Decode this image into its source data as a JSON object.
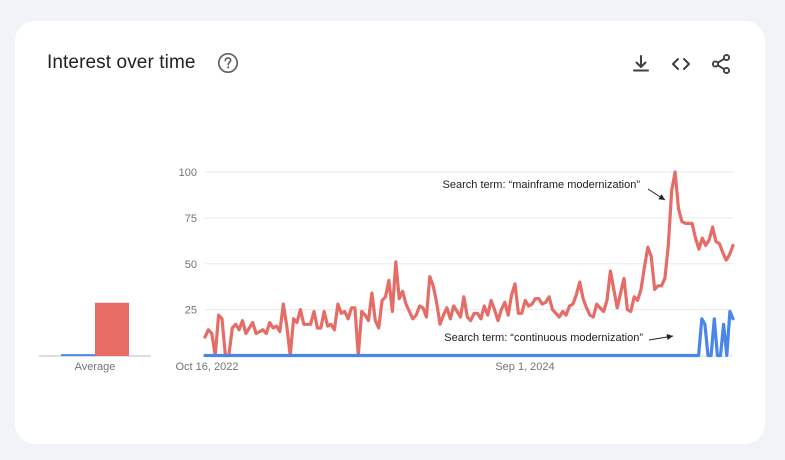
{
  "widget": {
    "title": "Interest over time",
    "help_icon": "help-circle-icon",
    "toolbar": [
      {
        "icon": "download-icon",
        "action": "download"
      },
      {
        "icon": "embed-code-icon",
        "action": "embed"
      },
      {
        "icon": "share-icon",
        "action": "share"
      }
    ]
  },
  "average_label": "Average",
  "chart_data": {
    "type": "line",
    "x_tick_labels": [
      "Oct 16, 2022",
      "Sep 1, 2024"
    ],
    "y_ticks": [
      25,
      50,
      75,
      100
    ],
    "ylim": [
      0,
      100
    ],
    "grid": true,
    "annotations": [
      {
        "text": "Search term: “mainframe modernization”",
        "series": "mainframe modernization"
      },
      {
        "text": "Search term: “continuous modernization”",
        "series": "continuous modernization"
      }
    ],
    "average_bars": [
      {
        "series": "continuous modernization",
        "value": 1
      },
      {
        "series": "mainframe modernization",
        "value": 29
      }
    ],
    "series": [
      {
        "name": "mainframe modernization",
        "color": "#e66c66",
        "values": [
          10,
          14,
          12,
          0,
          22,
          20,
          0,
          0,
          15,
          17,
          14,
          19,
          12,
          15,
          18,
          12,
          13,
          14,
          12,
          18,
          15,
          16,
          13,
          28,
          16,
          0,
          20,
          18,
          25,
          17,
          17,
          17,
          24,
          15,
          15,
          24,
          16,
          17,
          14,
          28,
          23,
          24,
          20,
          26,
          26,
          0,
          24,
          22,
          19,
          34,
          19,
          15,
          30,
          32,
          41,
          24,
          51,
          31,
          35,
          28,
          24,
          20,
          22,
          27,
          26,
          21,
          43,
          38,
          29,
          17,
          22,
          26,
          20,
          27,
          24,
          21,
          32,
          21,
          19,
          23,
          23,
          20,
          27,
          22,
          30,
          25,
          19,
          25,
          29,
          22,
          33,
          39,
          23,
          23,
          30,
          27,
          28,
          31,
          31,
          28,
          29,
          32,
          25,
          23,
          21,
          24,
          22,
          27,
          28,
          33,
          40,
          31,
          26,
          22,
          21,
          28,
          26,
          24,
          30,
          46,
          36,
          26,
          34,
          42,
          25,
          24,
          32,
          30,
          36,
          48,
          59,
          54,
          36,
          38,
          38,
          42,
          60,
          90,
          102,
          80,
          73,
          72,
          72,
          72,
          64,
          58,
          64,
          60,
          63,
          70,
          62,
          61,
          56,
          52,
          55,
          60
        ]
      },
      {
        "name": "continuous modernization",
        "color": "#4a85e8",
        "values": [
          0,
          0,
          0,
          0,
          0,
          0,
          0,
          0,
          0,
          0,
          0,
          0,
          0,
          0,
          0,
          0,
          0,
          0,
          0,
          0,
          0,
          0,
          0,
          0,
          0,
          0,
          0,
          0,
          0,
          0,
          0,
          0,
          0,
          0,
          0,
          0,
          0,
          0,
          0,
          0,
          0,
          0,
          0,
          0,
          0,
          0,
          0,
          0,
          0,
          0,
          0,
          0,
          0,
          0,
          0,
          0,
          0,
          0,
          0,
          0,
          0,
          0,
          0,
          0,
          0,
          0,
          0,
          0,
          0,
          0,
          0,
          0,
          0,
          0,
          0,
          0,
          0,
          0,
          0,
          0,
          0,
          0,
          0,
          0,
          0,
          0,
          0,
          0,
          0,
          0,
          0,
          0,
          0,
          0,
          0,
          0,
          0,
          0,
          0,
          0,
          0,
          0,
          0,
          0,
          0,
          0,
          0,
          0,
          0,
          0,
          0,
          0,
          0,
          0,
          0,
          0,
          0,
          0,
          0,
          0,
          0,
          0,
          0,
          0,
          0,
          0,
          0,
          0,
          0,
          0,
          0,
          0,
          0,
          0,
          0,
          0,
          0,
          0,
          0,
          0,
          0,
          0,
          0,
          0,
          0,
          0,
          0,
          0,
          0,
          0,
          0,
          0,
          0,
          0,
          0,
          0,
          0,
          0,
          0,
          20,
          17,
          0,
          0,
          20,
          0,
          0,
          17,
          0,
          24,
          20
        ]
      }
    ]
  }
}
